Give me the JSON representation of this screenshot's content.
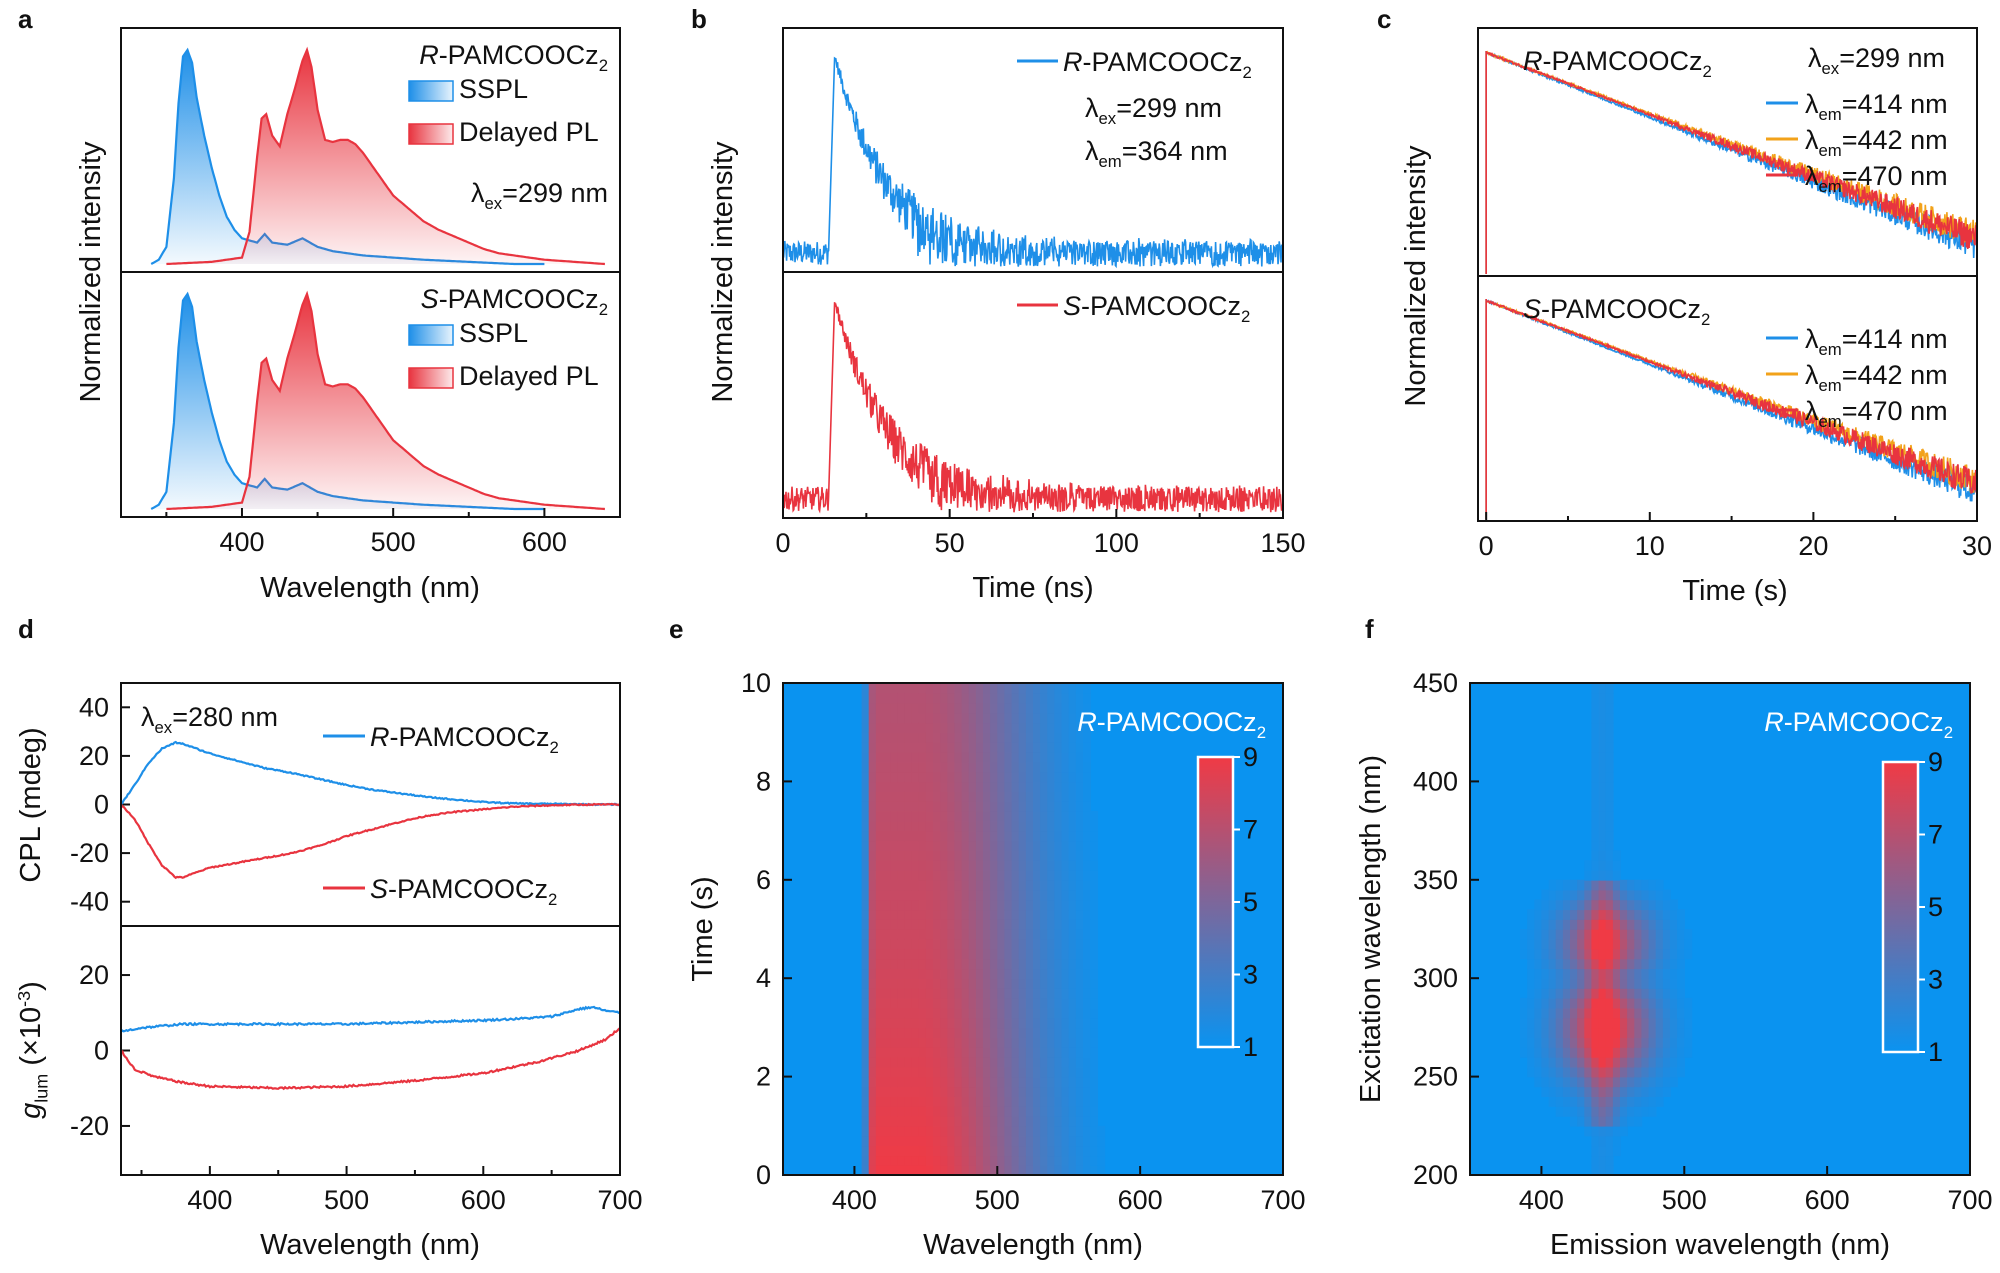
{
  "colors": {
    "blue": "#1E8FE8",
    "red": "#E8343F",
    "orange": "#F2A21A",
    "map_low": "#0A93F0",
    "map_high": "#F03A45"
  },
  "panel_letters": [
    "a",
    "b",
    "c",
    "d",
    "e",
    "f"
  ],
  "chart_data": [
    {
      "panel": "a",
      "type": "area",
      "xlabel": "Wavelength (nm)",
      "ylabel": "Normalized  intensity",
      "xlim": [
        320,
        650
      ],
      "xticks": [
        400,
        500,
        600
      ],
      "excitation_note": "λex=299 nm",
      "subplots": [
        {
          "compound": "R-PAMCOOCz2",
          "legend": [
            "SSPL",
            "Delayed PL"
          ]
        },
        {
          "compound": "S-PAMCOOCz2",
          "legend": [
            "SSPL",
            "Delayed PL"
          ]
        }
      ],
      "series": [
        {
          "name": "SSPL",
          "x": [
            340,
            345,
            350,
            355,
            358,
            361,
            364,
            367,
            370,
            375,
            380,
            385,
            390,
            395,
            400,
            410,
            415,
            420,
            430,
            440,
            445,
            450,
            460,
            470,
            480,
            500,
            520,
            550,
            580,
            600
          ],
          "y": [
            0.0,
            0.02,
            0.08,
            0.4,
            0.75,
            0.97,
            1.0,
            0.94,
            0.78,
            0.6,
            0.45,
            0.32,
            0.22,
            0.16,
            0.12,
            0.1,
            0.14,
            0.1,
            0.09,
            0.12,
            0.1,
            0.08,
            0.06,
            0.05,
            0.04,
            0.03,
            0.02,
            0.01,
            0.0,
            0.0
          ]
        },
        {
          "name": "Delayed PL",
          "x": [
            350,
            380,
            400,
            405,
            410,
            413,
            416,
            420,
            425,
            430,
            435,
            440,
            443,
            446,
            450,
            455,
            460,
            465,
            470,
            475,
            480,
            490,
            500,
            510,
            520,
            530,
            540,
            550,
            560,
            570,
            580,
            600,
            620,
            640
          ],
          "y": [
            0.0,
            0.01,
            0.03,
            0.15,
            0.5,
            0.68,
            0.7,
            0.6,
            0.55,
            0.7,
            0.82,
            0.95,
            1.0,
            0.92,
            0.72,
            0.58,
            0.57,
            0.58,
            0.58,
            0.56,
            0.52,
            0.42,
            0.32,
            0.26,
            0.2,
            0.16,
            0.13,
            0.1,
            0.07,
            0.05,
            0.04,
            0.02,
            0.01,
            0.0
          ]
        }
      ]
    },
    {
      "panel": "b",
      "type": "line",
      "xlabel": "Time (ns)",
      "ylabel": "Normalized intensity",
      "xlim": [
        0,
        150
      ],
      "xticks": [
        0,
        50,
        100,
        150
      ],
      "subplots": [
        {
          "compound": "R-PAMCOOCz2",
          "notes": [
            "λex=299 nm",
            "λem=364 nm"
          ]
        },
        {
          "compound": "S-PAMCOOCz2"
        }
      ],
      "decay": {
        "rise_ns": 13.5,
        "peak_ns": 15.5,
        "lifetime_ns": 17,
        "noise_floor": 0.08
      }
    },
    {
      "panel": "c",
      "type": "line",
      "xlabel": "Time (s)",
      "ylabel": "Normalized intensity",
      "xlim": [
        -0.5,
        30
      ],
      "xticks": [
        0,
        10,
        20,
        30
      ],
      "excitation_note": "λex=299 nm",
      "subplots": [
        {
          "compound": "R-PAMCOOCz2"
        },
        {
          "compound": "S-PAMCOOCz2"
        }
      ],
      "series": [
        {
          "name": "λem=414 nm",
          "lifetime_s": 5.0
        },
        {
          "name": "λem=442 nm",
          "lifetime_s": 5.3
        },
        {
          "name": "λem=470 nm",
          "lifetime_s": 5.2
        }
      ]
    },
    {
      "panel": "d",
      "type": "line",
      "xlabel": "Wavelength (nm)",
      "xlim": [
        335,
        700
      ],
      "xticks": [
        400,
        500,
        600,
        700
      ],
      "excitation_note": "λex=280 nm",
      "top": {
        "ylabel": "CPL (mdeg)",
        "ylim": [
          -50,
          50
        ],
        "yticks": [
          -40,
          -20,
          0,
          20,
          40
        ],
        "series": [
          {
            "name": "R-PAMCOOCz2",
            "x": [
              335,
              345,
              355,
              365,
              375,
              380,
              390,
              400,
              420,
              440,
              460,
              480,
              500,
              520,
              540,
              560,
              580,
              600,
              620,
              640,
              660,
              680,
              700
            ],
            "y": [
              0,
              8,
              17,
              23,
              25.5,
              25,
              23,
              21,
              18,
              15,
              13,
              10.5,
              8,
              6,
              4.5,
              3,
              2,
              1,
              0.5,
              0.3,
              0.2,
              0,
              0
            ]
          },
          {
            "name": "S-PAMCOOCz2",
            "x": [
              335,
              345,
              355,
              365,
              375,
              380,
              390,
              400,
              420,
              440,
              460,
              480,
              500,
              520,
              540,
              560,
              580,
              600,
              620,
              640,
              660,
              680,
              700
            ],
            "y": [
              0,
              -6,
              -16,
              -25,
              -30,
              -30,
              -28,
              -26,
              -24,
              -22,
              -20,
              -17,
              -13,
              -10,
              -7,
              -4.5,
              -3,
              -2,
              -1,
              -0.5,
              -0.2,
              0,
              0
            ]
          }
        ]
      },
      "bottom": {
        "ylabel": "glum (×10-3)",
        "ylim": [
          -33,
          33
        ],
        "yticks": [
          -20,
          0,
          20
        ],
        "series": [
          {
            "name": "R-PAMCOOCz2",
            "x": [
              335,
              350,
              380,
              400,
              450,
              500,
              550,
              600,
              630,
              650,
              670,
              680,
              690,
              700
            ],
            "y": [
              5,
              6,
              7,
              7,
              7,
              7,
              7.5,
              8,
              8.5,
              9,
              11,
              11.5,
              10.5,
              10
            ]
          },
          {
            "name": "S-PAMCOOCz2",
            "x": [
              335,
              345,
              360,
              380,
              400,
              450,
              500,
              550,
              600,
              640,
              670,
              690,
              700
            ],
            "y": [
              0,
              -5,
              -7,
              -8.5,
              -9.5,
              -10,
              -9.5,
              -8,
              -6,
              -3,
              0,
              3,
              6
            ]
          }
        ]
      }
    },
    {
      "panel": "e",
      "type": "heatmap",
      "xlabel": "Wavelength (nm)",
      "ylabel": "Time (s)",
      "xlim": [
        350,
        700
      ],
      "ylim": [
        0,
        10
      ],
      "xticks": [
        400,
        500,
        600,
        700
      ],
      "yticks": [
        0,
        2,
        4,
        6,
        8,
        10
      ],
      "compound": "R-PAMCOOCz2",
      "colorbar": {
        "range": [
          1,
          9
        ],
        "ticks": [
          9,
          7,
          5,
          3,
          1
        ]
      }
    },
    {
      "panel": "f",
      "type": "heatmap",
      "xlabel": "Emission wavelength (nm)",
      "ylabel": "Excitation wavelength (nm)",
      "xlim": [
        350,
        700
      ],
      "ylim": [
        200,
        450
      ],
      "xticks": [
        400,
        500,
        600,
        700
      ],
      "yticks": [
        200,
        250,
        300,
        350,
        400,
        450
      ],
      "compound": "R-PAMCOOCz2",
      "colorbar": {
        "range": [
          1,
          9
        ],
        "ticks": [
          9,
          7,
          5,
          3,
          1
        ]
      }
    }
  ]
}
